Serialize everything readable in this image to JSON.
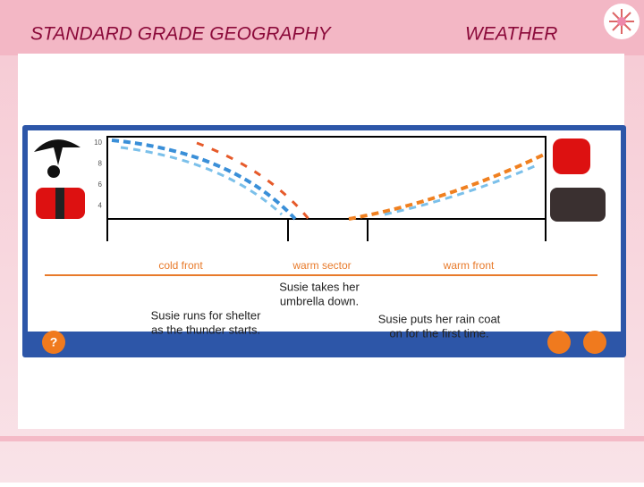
{
  "header": {
    "title": "STANDARD GRADE  GEOGRAPHY",
    "topic": "WEATHER"
  },
  "diagram": {
    "y_axis_labels": [
      "10",
      "8",
      "6",
      "4"
    ],
    "zones": [
      "cold front",
      "warm sector",
      "warm front"
    ],
    "captions": [
      {
        "lines": [
          "Susie takes her",
          "umbrella down."
        ]
      },
      {
        "lines": [
          "Susie runs for shelter",
          "as the thunder starts."
        ]
      },
      {
        "lines": [
          "Susie puts her rain coat",
          "on for the first time."
        ]
      }
    ]
  }
}
